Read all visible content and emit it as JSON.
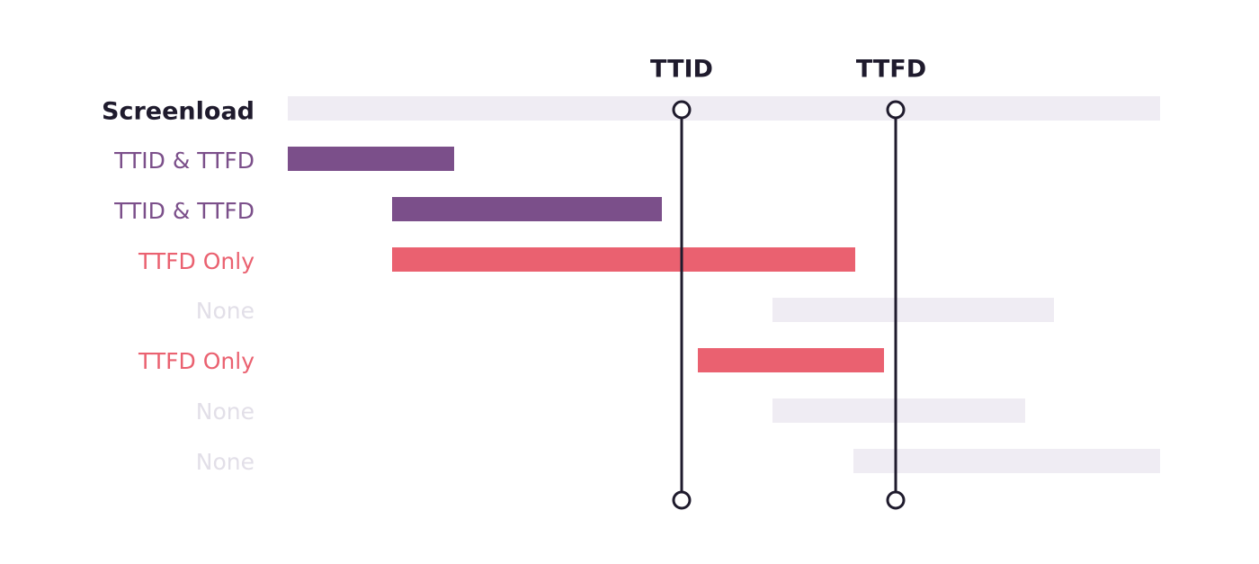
{
  "markers": [
    "TTID",
    "TTFD"
  ],
  "rows": [
    {
      "label": "Screenload"
    },
    {
      "label": "TTID & TTFD"
    },
    {
      "label": "TTID & TTFD"
    },
    {
      "label": "TTFD Only"
    },
    {
      "label": "None"
    },
    {
      "label": "TTFD Only"
    },
    {
      "label": "None"
    },
    {
      "label": "None"
    }
  ]
}
